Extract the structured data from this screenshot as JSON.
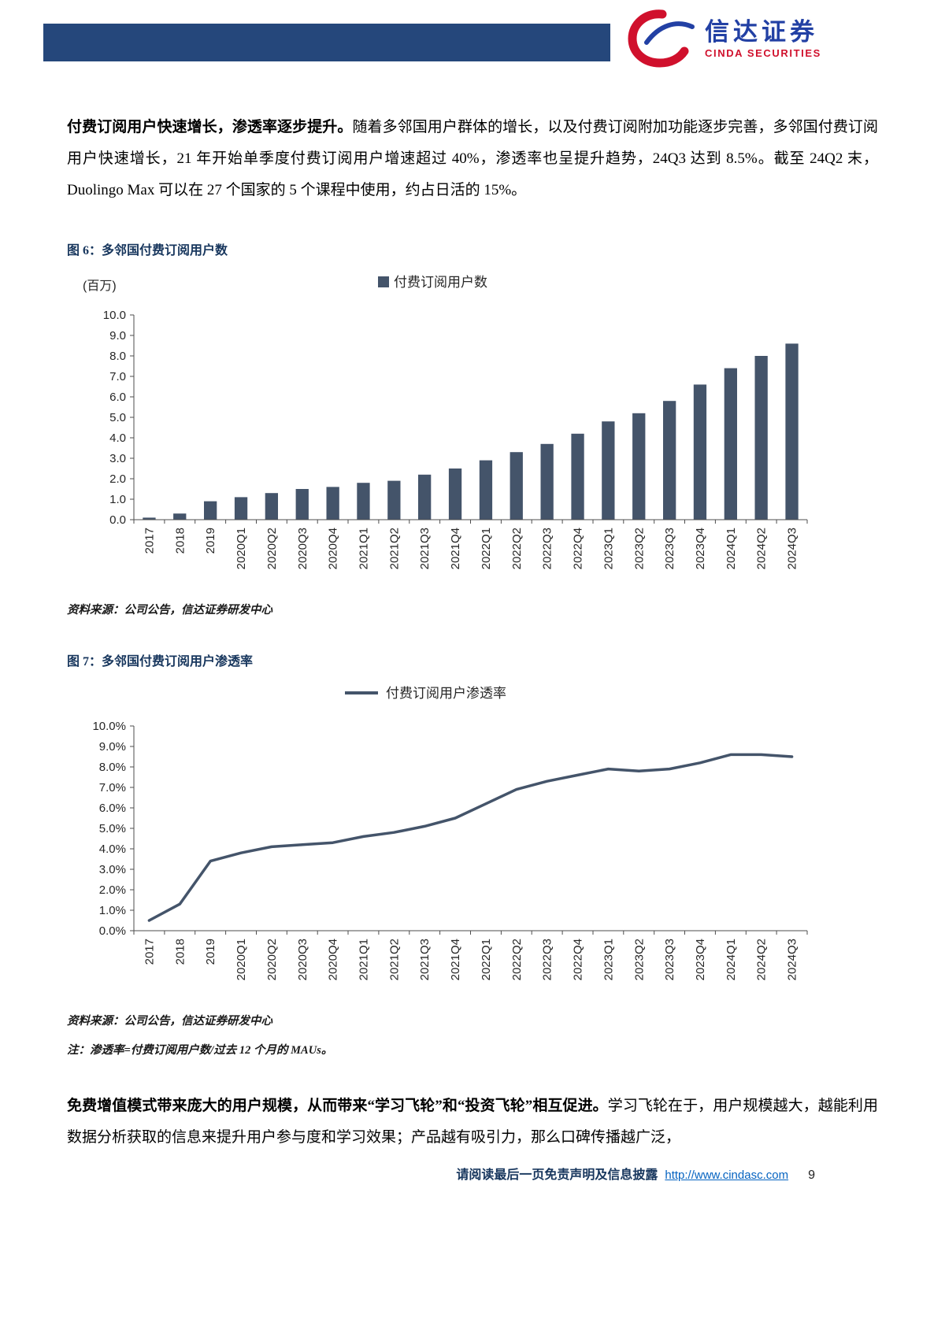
{
  "header": {
    "brand_cn": "信达证券",
    "brand_en": "CINDA SECURITIES"
  },
  "intro": {
    "lead": "付费订阅用户快速增长，渗透率逐步提升。",
    "body": "随着多邻国用户群体的增长，以及付费订阅附加功能逐步完善，多邻国付费订阅用户快速增长，21 年开始单季度付费订阅用户增速超过 40%，渗透率也呈提升趋势，24Q3 达到 8.5%。截至 24Q2 末，Duolingo Max 可以在 27 个国家的 5 个课程中使用，约占日活的 15%。"
  },
  "figure6": {
    "title": "图 6：多邻国付费订阅用户数",
    "source": "资料来源：公司公告，信达证券研发中心"
  },
  "figure7": {
    "title": "图 7：多邻国付费订阅用户渗透率",
    "source": "资料来源：公司公告，信达证券研发中心",
    "note": "注：渗透率=付费订阅用户数/过去 12 个月的 MAUs。"
  },
  "closing": {
    "lead": "免费增值模式带来庞大的用户规模，从而带来“学习飞轮”和“投资飞轮”相互促进。",
    "body": "学习飞轮在于，用户规模越大，越能利用数据分析获取的信息来提升用户参与度和学习效果；产品越有吸引力，那么口碑传播越广泛，"
  },
  "footer": {
    "disclaimer": "请阅读最后一页免责声明及信息披露",
    "link": "http://www.cindasc.com",
    "page": "9"
  },
  "colors": {
    "header_bar": "#25477b",
    "brand_blue": "#2240a4",
    "brand_red": "#d0102c",
    "chart_series": "#44546a",
    "figure_title": "#17365d",
    "footer_link": "#0563c1"
  },
  "chart_data": [
    {
      "type": "bar",
      "title": "付费订阅用户数",
      "legend": [
        "付费订阅用户数"
      ],
      "unit_label": "(百万)",
      "categories": [
        "2017",
        "2018",
        "2019",
        "2020Q1",
        "2020Q2",
        "2020Q3",
        "2020Q4",
        "2021Q1",
        "2021Q2",
        "2021Q3",
        "2021Q4",
        "2022Q1",
        "2022Q2",
        "2022Q3",
        "2022Q4",
        "2023Q1",
        "2023Q2",
        "2023Q3",
        "2023Q4",
        "2024Q1",
        "2024Q2",
        "2024Q3"
      ],
      "values": [
        0.1,
        0.3,
        0.9,
        1.1,
        1.3,
        1.5,
        1.6,
        1.8,
        1.9,
        2.2,
        2.5,
        2.9,
        3.3,
        3.7,
        4.2,
        4.8,
        5.2,
        5.8,
        6.6,
        7.4,
        8.0,
        8.6
      ],
      "ylim": [
        0,
        10
      ],
      "ytick_step": 1.0,
      "percent": false,
      "grid": false,
      "legend_position": "top-center",
      "color": "#44546a"
    },
    {
      "type": "line",
      "title": "付费订阅用户渗透率",
      "legend": [
        "付费订阅用户渗透率"
      ],
      "unit_label": "",
      "categories": [
        "2017",
        "2018",
        "2019",
        "2020Q1",
        "2020Q2",
        "2020Q3",
        "2020Q4",
        "2021Q1",
        "2021Q2",
        "2021Q3",
        "2021Q4",
        "2022Q1",
        "2022Q2",
        "2022Q3",
        "2022Q4",
        "2023Q1",
        "2023Q2",
        "2023Q3",
        "2023Q4",
        "2024Q1",
        "2024Q2",
        "2024Q3"
      ],
      "values": [
        0.5,
        1.3,
        3.4,
        3.8,
        4.1,
        4.2,
        4.3,
        4.6,
        4.8,
        5.1,
        5.5,
        6.2,
        6.9,
        7.3,
        7.6,
        7.9,
        7.8,
        7.9,
        8.2,
        8.6,
        8.6,
        8.5
      ],
      "ylim": [
        0,
        10
      ],
      "ytick_step": 1.0,
      "percent": true,
      "grid": false,
      "legend_position": "top-center",
      "color": "#44546a"
    }
  ]
}
